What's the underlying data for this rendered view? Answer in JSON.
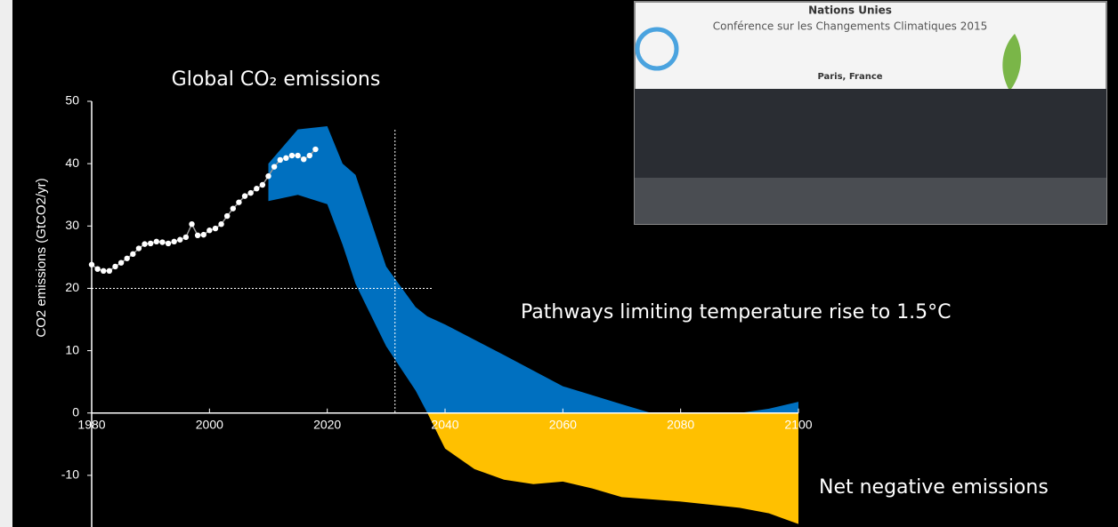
{
  "chart_data": {
    "type": "area",
    "title": "Global CO₂ emissions",
    "y_label": "CO2 emissions (GtCO2/yr)",
    "annotations": [
      "Pathways limiting temperature rise to 1.5°C",
      "Net negative emissions"
    ],
    "xlim": [
      1980,
      2100
    ],
    "xticks": [
      1980,
      2000,
      2020,
      2040,
      2060,
      2080,
      2100
    ],
    "ylim": [
      -18,
      50
    ],
    "yticks": [
      -10,
      0,
      10,
      20,
      30,
      40,
      50
    ],
    "reference_lines": {
      "x": 2031.5,
      "y": 20
    },
    "series": [
      {
        "color": "#ffffff",
        "x": [
          1980,
          1981,
          1982,
          1983,
          1984,
          1985,
          1986,
          1987,
          1988,
          1989,
          1990,
          1991,
          1992,
          1993,
          1994,
          1995,
          1996,
          1997,
          1998,
          1999,
          2000,
          2001,
          2002,
          2003,
          2004,
          2005,
          2006,
          2007,
          2008,
          2009,
          2010,
          2011,
          2012,
          2013,
          2014,
          2015,
          2016,
          2017,
          2018
        ],
        "values": [
          23.8,
          23.1,
          22.8,
          22.8,
          23.5,
          24.1,
          24.8,
          25.5,
          26.4,
          27.1,
          27.2,
          27.5,
          27.4,
          27.2,
          27.5,
          27.8,
          28.2,
          30.3,
          28.5,
          28.6,
          29.3,
          29.6,
          30.3,
          31.6,
          32.8,
          33.8,
          34.8,
          35.3,
          36.0,
          36.6,
          38.0,
          39.5,
          40.6,
          40.9,
          41.3,
          41.3,
          40.7,
          41.3,
          42.3
        ]
      },
      {
        "color": "#0070c0",
        "x": [
          2010,
          2015,
          2020,
          2022.6,
          2024.8,
          2030,
          2035,
          2037,
          2040,
          2050,
          2060,
          2070,
          2075,
          2080,
          2090,
          2095,
          2100
        ],
        "upper": [
          40,
          45.5,
          46,
          40,
          38.2,
          23.5,
          17,
          15.5,
          14.2,
          9.3,
          4.3,
          1.4,
          0,
          0,
          0,
          0.7,
          1.8
        ],
        "lower": [
          34,
          35,
          33.5,
          27,
          20.7,
          10.7,
          3.6,
          0,
          0,
          0,
          0,
          0,
          0,
          0,
          0,
          0,
          0
        ]
      },
      {
        "color": "#ffc000",
        "x": [
          2037,
          2040,
          2045,
          2050,
          2055,
          2060,
          2065,
          2070,
          2080,
          2090,
          2095,
          2100
        ],
        "upper": [
          0,
          0,
          0,
          0,
          0,
          0,
          0,
          0,
          0,
          0,
          0,
          0
        ],
        "lower": [
          0,
          -5.7,
          -9,
          -10.7,
          -11.4,
          -11,
          -12.1,
          -13.5,
          -14.2,
          -15.2,
          -16.1,
          -17.8
        ]
      }
    ]
  },
  "photo": {
    "lines": [
      "Nations Unies",
      "Conférence sur les Changements Climatiques 2015",
      "Paris, France"
    ]
  }
}
